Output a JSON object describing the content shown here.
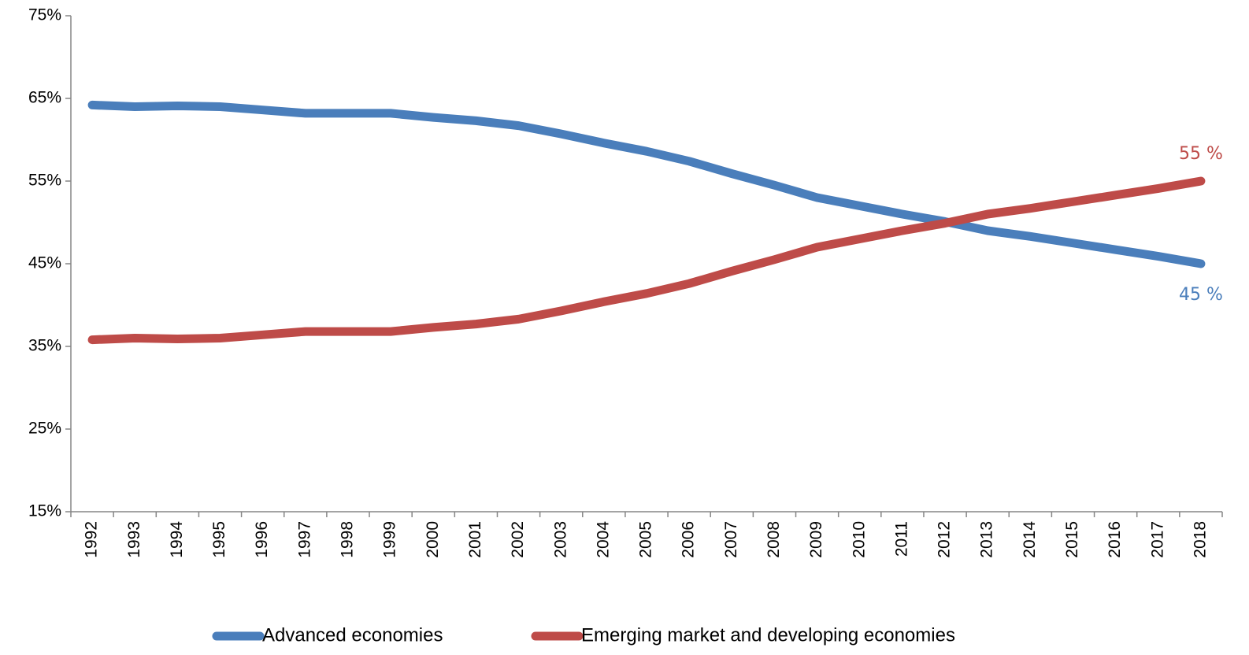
{
  "chart_data": {
    "type": "line",
    "categories": [
      "1992",
      "1993",
      "1994",
      "1995",
      "1996",
      "1997",
      "1998",
      "1999",
      "2000",
      "2001",
      "2002",
      "2003",
      "2004",
      "2005",
      "2006",
      "2007",
      "2008",
      "2009",
      "2010",
      "2011",
      "2012",
      "2013",
      "2014",
      "2015",
      "2016",
      "2017",
      "2018"
    ],
    "series": [
      {
        "name": "Advanced economies",
        "color": "#4a7ebb",
        "values": [
          64.2,
          64.0,
          64.1,
          64.0,
          63.6,
          63.2,
          63.2,
          63.2,
          62.7,
          62.3,
          61.7,
          60.7,
          59.6,
          58.6,
          57.4,
          55.9,
          54.5,
          53.0,
          52.0,
          51.0,
          50.1,
          49.0,
          48.3,
          47.5,
          46.7,
          45.9,
          45.0
        ],
        "value_labels": [
          null,
          null,
          null,
          null,
          null,
          null,
          null,
          null,
          null,
          null,
          null,
          null,
          null,
          null,
          null,
          null,
          null,
          null,
          null,
          null,
          null,
          null,
          null,
          null,
          null,
          null,
          "45 %"
        ]
      },
      {
        "name": "Emerging market and developing economies",
        "color": "#be4b48",
        "values": [
          35.8,
          36.0,
          35.9,
          36.0,
          36.4,
          36.8,
          36.8,
          36.8,
          37.3,
          37.7,
          38.3,
          39.3,
          40.4,
          41.4,
          42.6,
          44.1,
          45.5,
          47.0,
          48.0,
          49.0,
          49.9,
          51.0,
          51.7,
          52.5,
          53.3,
          54.1,
          55.0
        ],
        "value_labels": [
          null,
          null,
          null,
          null,
          null,
          null,
          null,
          null,
          null,
          null,
          null,
          null,
          null,
          null,
          null,
          null,
          null,
          null,
          null,
          null,
          null,
          null,
          null,
          null,
          null,
          null,
          "55 %"
        ]
      }
    ],
    "ylim": [
      15,
      75
    ],
    "yticks": [
      {
        "value": 15,
        "label": "15%"
      },
      {
        "value": 25,
        "label": "25%"
      },
      {
        "value": 35,
        "label": "35%"
      },
      {
        "value": 45,
        "label": "45%"
      },
      {
        "value": 55,
        "label": "55%"
      },
      {
        "value": 65,
        "label": "65%"
      },
      {
        "value": 75,
        "label": "75%"
      }
    ],
    "legend": "bottom"
  }
}
